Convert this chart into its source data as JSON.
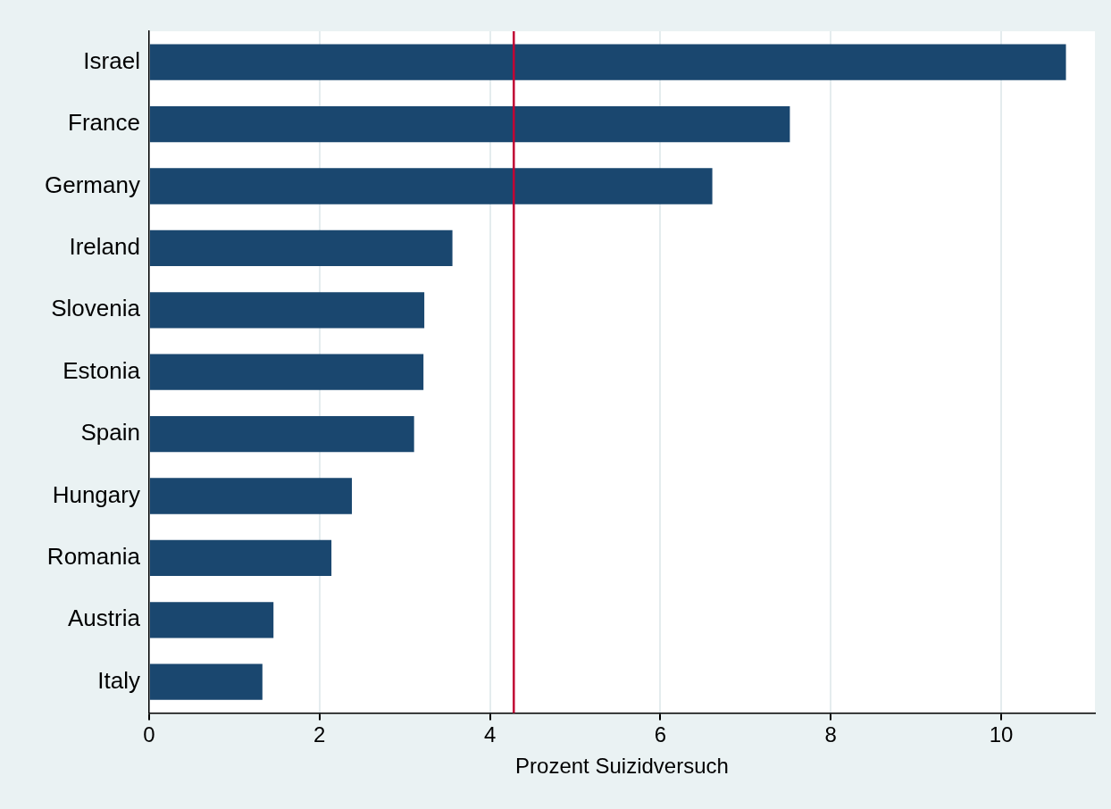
{
  "chart_data": {
    "type": "bar",
    "orientation": "horizontal",
    "xlabel": "Prozent Suizidversuch",
    "categories": [
      "Israel",
      "France",
      "Germany",
      "Ireland",
      "Slovenia",
      "Estonia",
      "Spain",
      "Hungary",
      "Romania",
      "Austria",
      "Italy"
    ],
    "values": [
      10.76,
      7.52,
      6.61,
      3.56,
      3.23,
      3.22,
      3.11,
      2.38,
      2.14,
      1.46,
      1.33
    ],
    "color": "#1a476f",
    "xlim": [
      0,
      11.1
    ],
    "xticks": [
      0,
      2,
      4,
      6,
      8,
      10
    ],
    "grid": "x",
    "legend": false,
    "ref_lines": [
      {
        "axis": "x",
        "value": 4.28,
        "color": "#c10534"
      }
    ]
  }
}
